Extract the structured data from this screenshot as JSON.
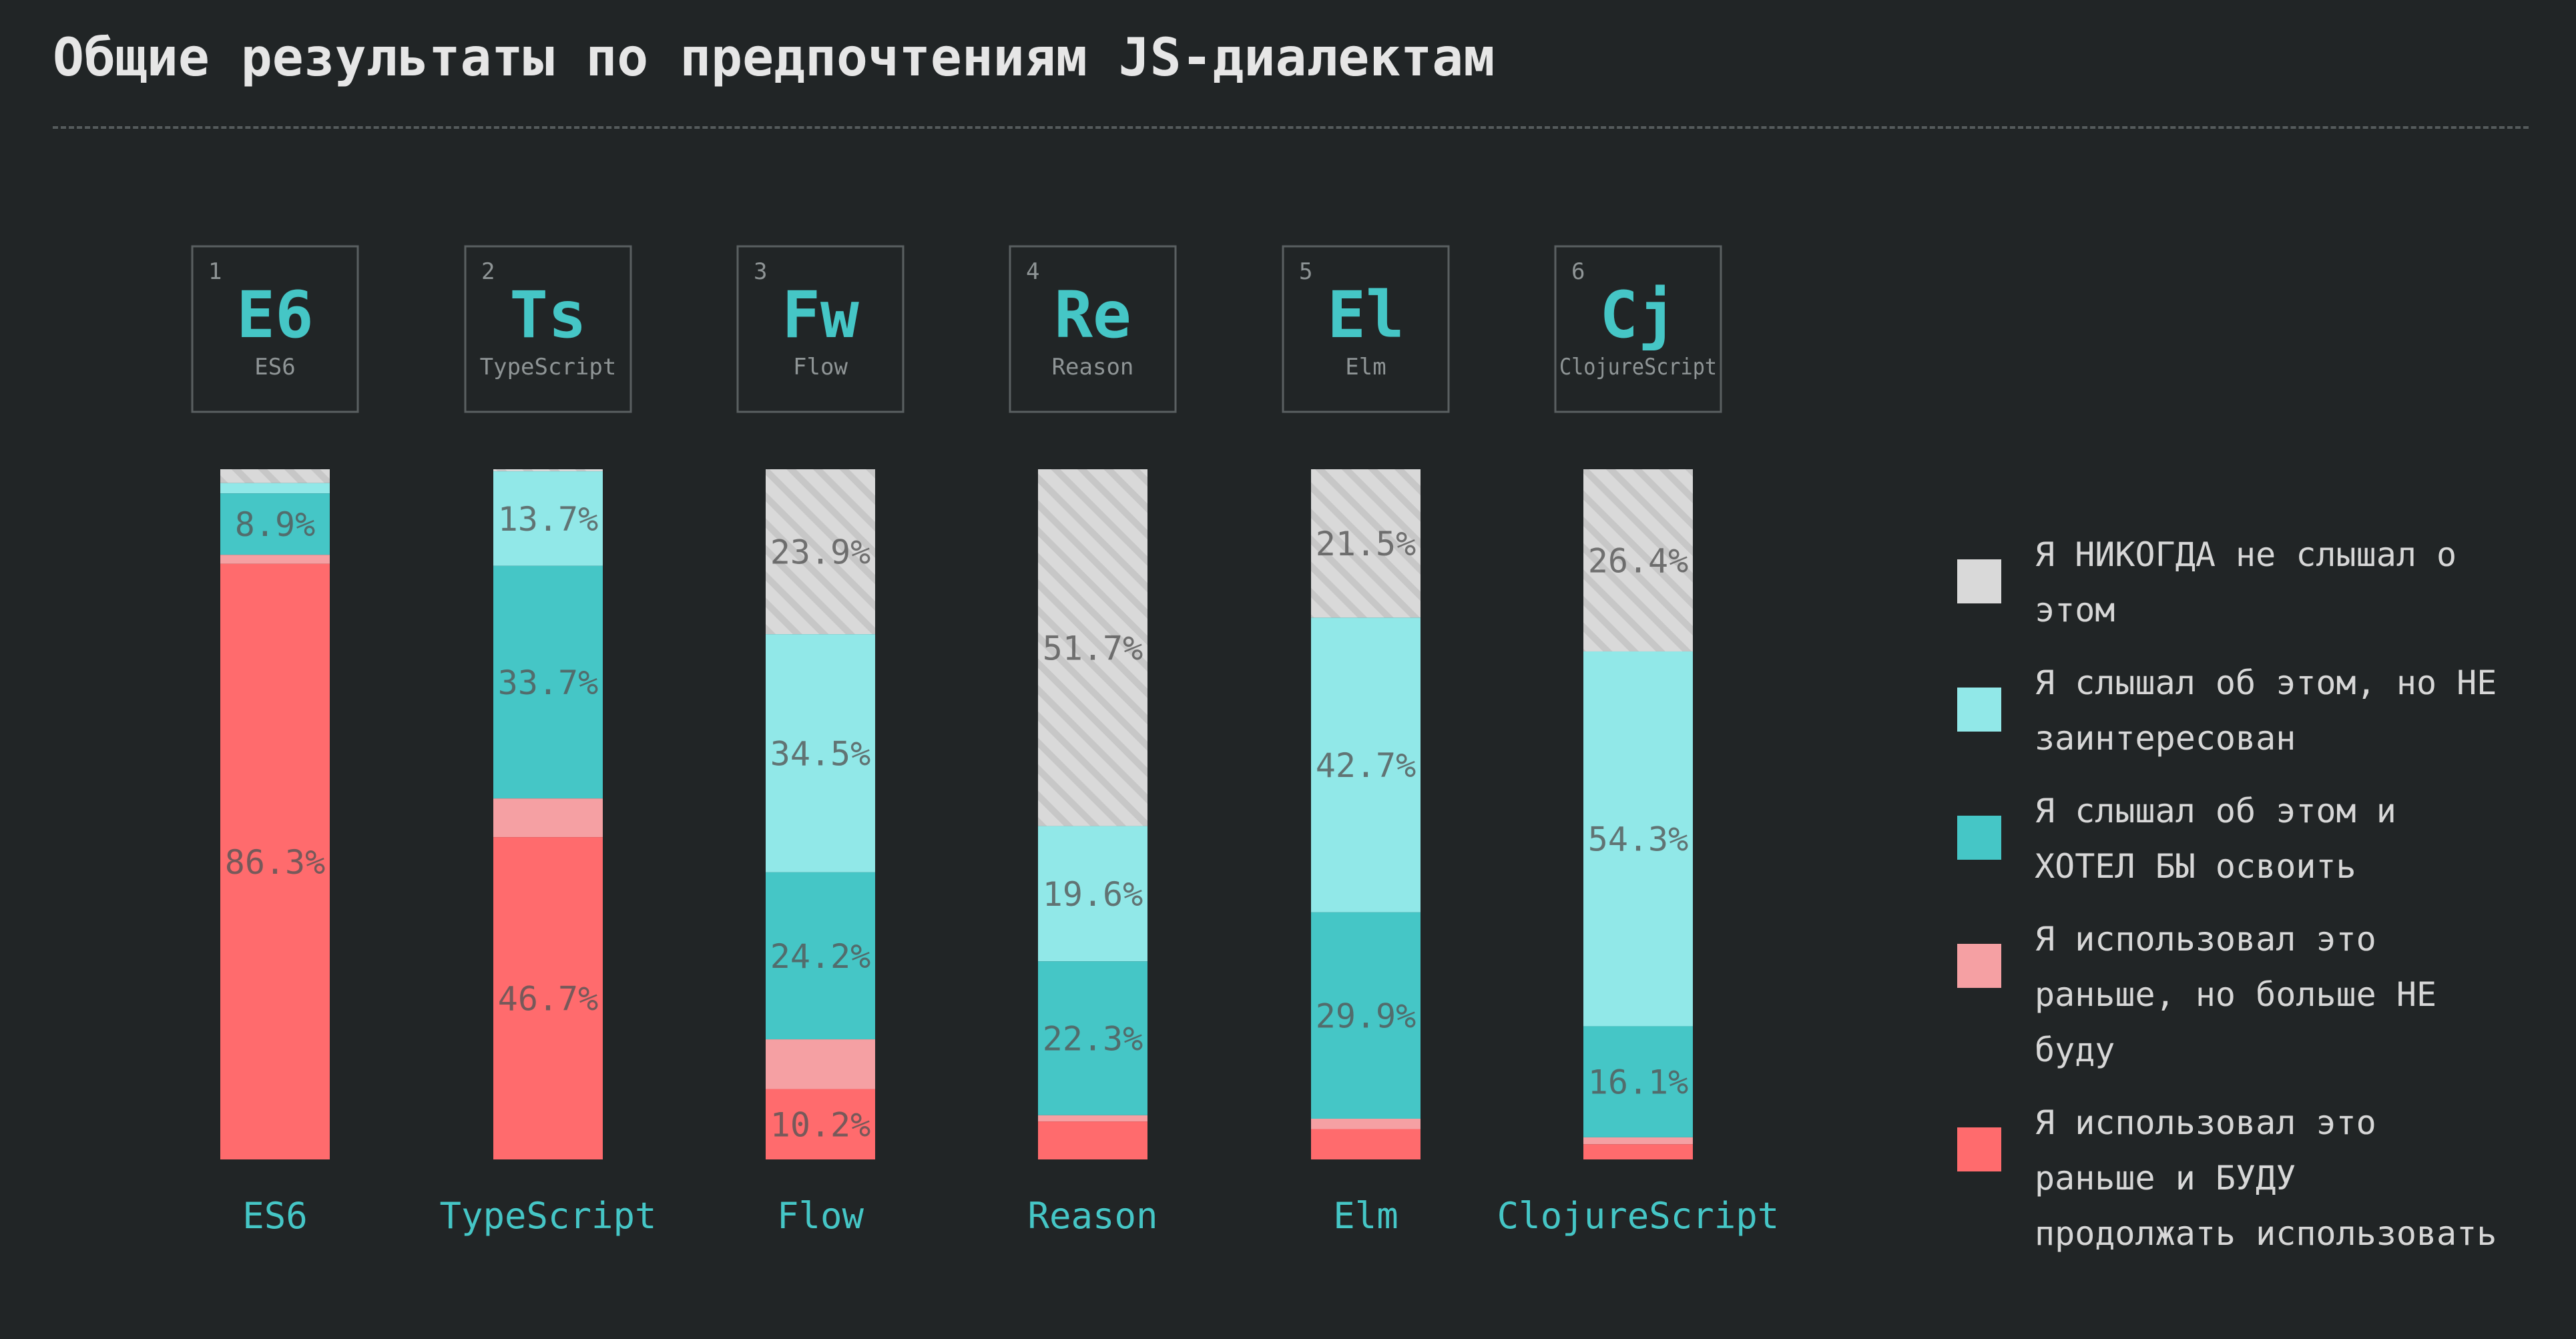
{
  "title": "Общие результаты по предпочтениям JS-диалектам",
  "colors": {
    "background": "#212526",
    "never_heard": "#d9d9d9",
    "heard_not_interested": "#91e8e8",
    "want_to_learn": "#45c6c6",
    "used_wont_again": "#f5a0a3",
    "used_will_again": "#ff6b6d",
    "accent_text": "#45c6c6",
    "muted_text": "#8f9596"
  },
  "chart_data": {
    "type": "bar",
    "stacked": true,
    "normalized_percent": true,
    "title": "Общие результаты по предпочтениям JS-диалектам",
    "categories": [
      "ES6",
      "TypeScript",
      "Flow",
      "Reason",
      "Elm",
      "ClojureScript"
    ],
    "tiles": [
      {
        "number": "1",
        "symbol": "E6",
        "name": "ES6"
      },
      {
        "number": "2",
        "symbol": "Ts",
        "name": "TypeScript"
      },
      {
        "number": "3",
        "symbol": "Fw",
        "name": "Flow"
      },
      {
        "number": "4",
        "symbol": "Re",
        "name": "Reason"
      },
      {
        "number": "5",
        "symbol": "El",
        "name": "Elm"
      },
      {
        "number": "6",
        "symbol": "Cj",
        "name": "ClojureScript"
      }
    ],
    "series": [
      {
        "name": "Я НИКОГДА не слышал о этом",
        "key": "never_heard",
        "hatched": true,
        "values": [
          2.0,
          0.3,
          23.9,
          51.7,
          21.5,
          26.4
        ],
        "labels": [
          "",
          "",
          "23.9%",
          "51.7%",
          "21.5%",
          "26.4%"
        ]
      },
      {
        "name": "Я слышал об этом, но НЕ заинтересован",
        "key": "heard_not_interested",
        "values": [
          1.5,
          13.7,
          34.5,
          19.6,
          42.7,
          54.3
        ],
        "labels": [
          "",
          "13.7%",
          "34.5%",
          "19.6%",
          "42.7%",
          "54.3%"
        ]
      },
      {
        "name": "Я слышал об этом и ХОТЕЛ БЫ освоить",
        "key": "want_to_learn",
        "values": [
          8.9,
          33.7,
          24.2,
          22.3,
          29.9,
          16.1
        ],
        "labels": [
          "8.9%",
          "33.7%",
          "24.2%",
          "22.3%",
          "29.9%",
          "16.1%"
        ]
      },
      {
        "name": "Я использовал это раньше, но больше НЕ буду",
        "key": "used_wont_again",
        "values": [
          1.3,
          5.6,
          7.2,
          0.9,
          1.5,
          1.0
        ],
        "labels": [
          "",
          "",
          "",
          "",
          "",
          ""
        ]
      },
      {
        "name": "Я использовал это раньше и БУДУ продолжать использовать",
        "key": "used_will_again",
        "values": [
          86.3,
          46.7,
          10.2,
          5.5,
          4.4,
          2.2
        ],
        "labels": [
          "86.3%",
          "46.7%",
          "10.2%",
          "",
          "",
          ""
        ]
      }
    ],
    "ylim": [
      0,
      100
    ],
    "legend_position": "right"
  },
  "legend": [
    {
      "key": "never_heard",
      "label": "Я НИКОГДА не слышал о этом"
    },
    {
      "key": "heard_not_interested",
      "label": "Я слышал об этом, но НЕ заинтересован"
    },
    {
      "key": "want_to_learn",
      "label": "Я слышал об этом и ХОТЕЛ БЫ освоить"
    },
    {
      "key": "used_wont_again",
      "label": "Я использовал это раньше, но больше НЕ буду"
    },
    {
      "key": "used_will_again",
      "label": "Я использовал это раньше и БУДУ продолжать использовать"
    }
  ]
}
